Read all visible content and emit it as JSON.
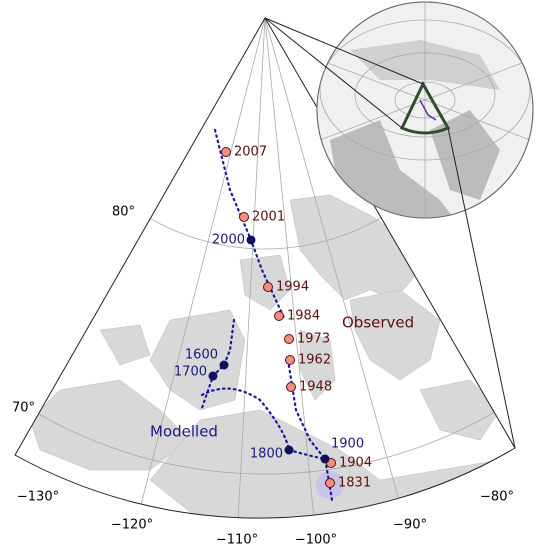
{
  "latitude_labels": [
    "80°",
    "70°"
  ],
  "longitude_labels": [
    "−130°",
    "−120°",
    "−110°",
    "−100°",
    "−90°",
    "−80°"
  ],
  "observed": {
    "label": "Observed",
    "years": [
      "2007",
      "2001",
      "1994",
      "1984",
      "1973",
      "1962",
      "1948",
      "1904",
      "1831"
    ]
  },
  "modelled": {
    "label": "Modelled",
    "years": [
      "2000",
      "1600",
      "1700",
      "1800",
      "1900"
    ]
  }
}
